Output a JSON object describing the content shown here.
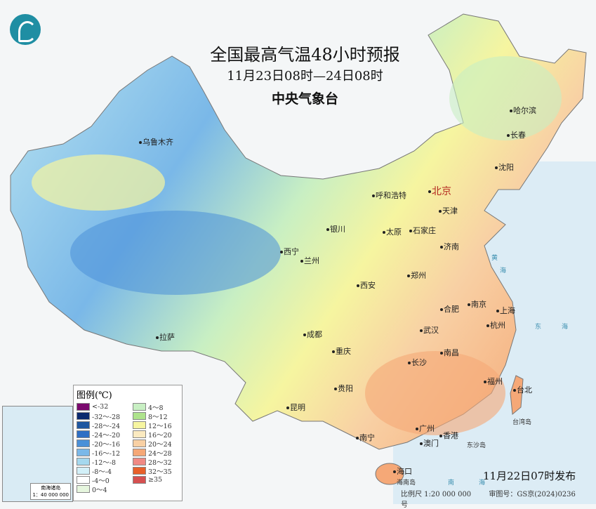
{
  "header": {
    "title": "全国最高气温48小时预报",
    "period": "11月23日08时—24日08时",
    "agency": "中央气象台"
  },
  "logo": "cma-logo",
  "cities": [
    {
      "name": "乌鲁木齐"
    },
    {
      "name": "哈尔滨"
    },
    {
      "name": "长春"
    },
    {
      "name": "沈阳"
    },
    {
      "name": "北京",
      "capital": true
    },
    {
      "name": "天津"
    },
    {
      "name": "呼和浩特"
    },
    {
      "name": "银川"
    },
    {
      "name": "太原"
    },
    {
      "name": "石家庄"
    },
    {
      "name": "济南"
    },
    {
      "name": "西宁"
    },
    {
      "name": "兰州"
    },
    {
      "name": "西安"
    },
    {
      "name": "郑州"
    },
    {
      "name": "南京"
    },
    {
      "name": "合肥"
    },
    {
      "name": "上海"
    },
    {
      "name": "杭州"
    },
    {
      "name": "武汉"
    },
    {
      "name": "成都"
    },
    {
      "name": "拉萨"
    },
    {
      "name": "重庆"
    },
    {
      "name": "长沙"
    },
    {
      "name": "南昌"
    },
    {
      "name": "福州"
    },
    {
      "name": "台北"
    },
    {
      "name": "贵阳"
    },
    {
      "name": "昆明"
    },
    {
      "name": "南宁"
    },
    {
      "name": "广州"
    },
    {
      "name": "澳门"
    },
    {
      "name": "香港"
    },
    {
      "name": "海口"
    }
  ],
  "seas": [
    "黄",
    "海",
    "东",
    "海",
    "台湾岛",
    "东沙岛",
    "海南岛",
    "南",
    "海"
  ],
  "legend": {
    "title": "图例(℃)",
    "items": [
      {
        "label": "<-32",
        "color": "#7a0a6e"
      },
      {
        "label": "-32～-28",
        "color": "#0b2a6e"
      },
      {
        "label": "-28～-24",
        "color": "#1f57a0"
      },
      {
        "label": "-24～-20",
        "color": "#2f6fc4"
      },
      {
        "label": "-20～-16",
        "color": "#4a90d8"
      },
      {
        "label": "-16～-12",
        "color": "#7ab8e8"
      },
      {
        "label": "-12～-8",
        "color": "#a5d8ee"
      },
      {
        "label": "-8～-4",
        "color": "#d3f0f8"
      },
      {
        "label": "-4～0",
        "color": "#ffffff"
      },
      {
        "label": "0～4",
        "color": "#e6f6de"
      },
      {
        "label": "4～8",
        "color": "#c8efc3"
      },
      {
        "label": "8～12",
        "color": "#aee38c"
      },
      {
        "label": "12～16",
        "color": "#f6f5a0"
      },
      {
        "label": "16～20",
        "color": "#fbeac0"
      },
      {
        "label": "20～24",
        "color": "#f8d0a4"
      },
      {
        "label": "24～28",
        "color": "#f5a877"
      },
      {
        "label": "28～32",
        "color": "#f08a84"
      },
      {
        "label": "32～35",
        "color": "#e8602a"
      },
      {
        "label": "≥35",
        "color": "#d65050"
      }
    ]
  },
  "inset": {
    "label": "南海诸岛",
    "scale": "1：40 000 000"
  },
  "issued": "11月22日07时发布",
  "footer": {
    "scale": "比例尺 1:20 000 000",
    "approval": "审图号：GS京(2024)0236号"
  }
}
